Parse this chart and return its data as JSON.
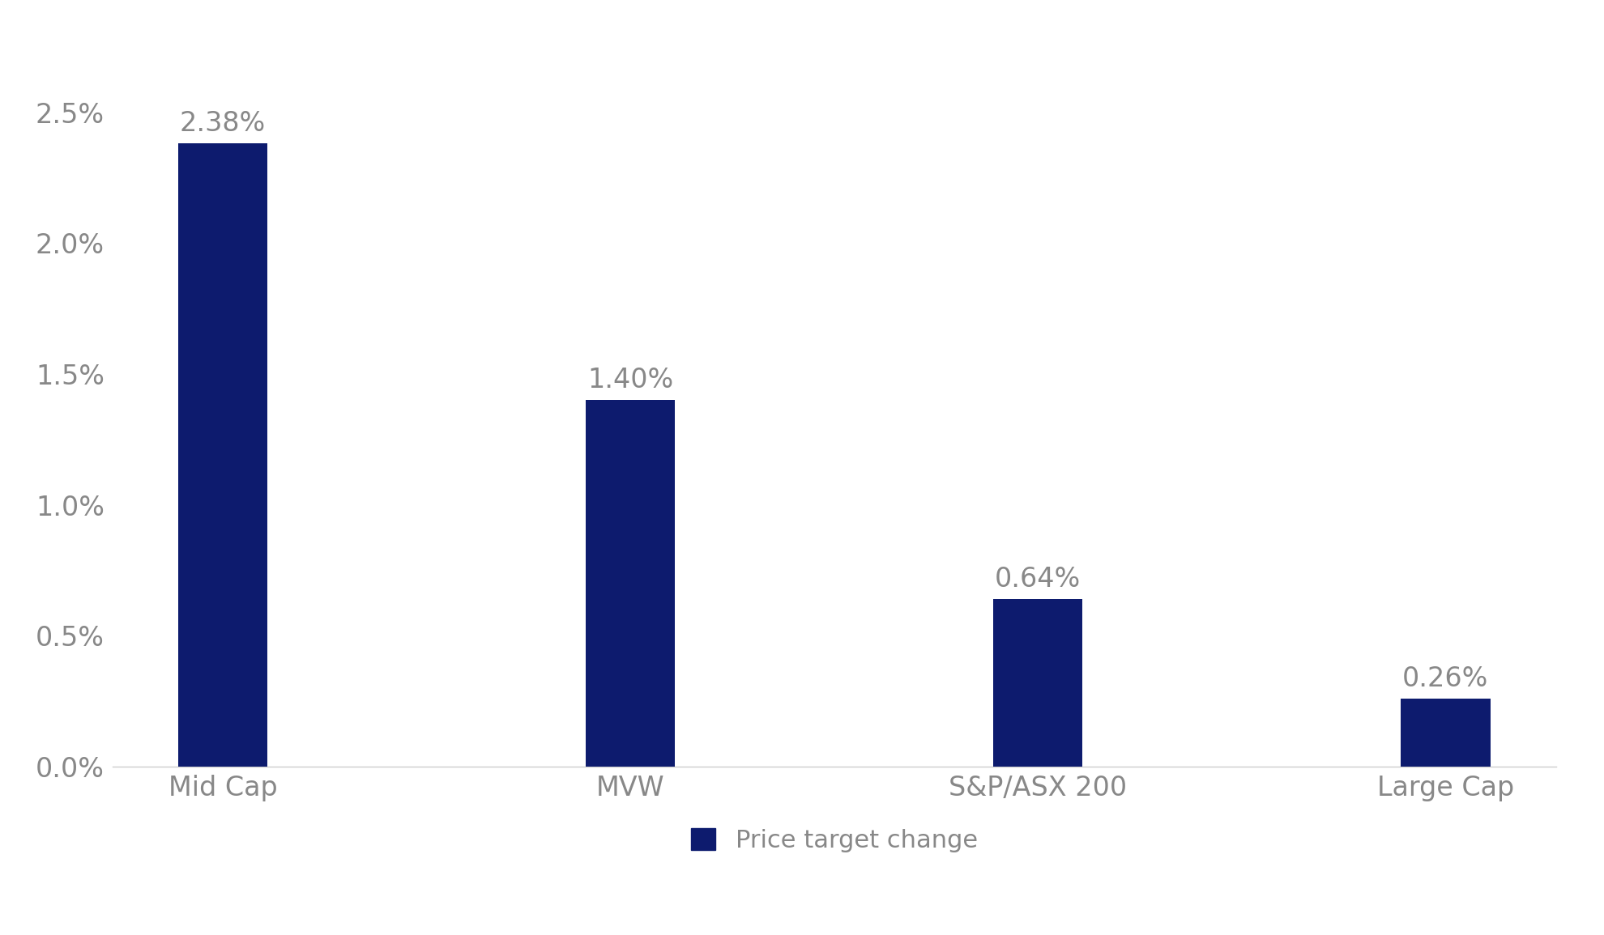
{
  "categories": [
    "Mid Cap",
    "MVW",
    "S&P/ASX 200",
    "Large Cap"
  ],
  "values": [
    2.38,
    1.4,
    0.64,
    0.26
  ],
  "bar_color": "#0d1b6e",
  "bar_labels": [
    "2.38%",
    "1.40%",
    "0.64%",
    "0.26%"
  ],
  "ylim": [
    0,
    2.75
  ],
  "yticks": [
    0.0,
    0.5,
    1.0,
    1.5,
    2.0,
    2.5
  ],
  "ytick_labels": [
    "0.0%",
    "0.5%",
    "1.0%",
    "1.5%",
    "2.0%",
    "2.5%"
  ],
  "legend_label": "Price target change",
  "background_color": "#ffffff",
  "tick_fontsize": 24,
  "bar_label_fontsize": 24,
  "legend_fontsize": 22,
  "bar_width": 0.22,
  "tick_color": "#888888",
  "bottom_spine_color": "#cccccc"
}
